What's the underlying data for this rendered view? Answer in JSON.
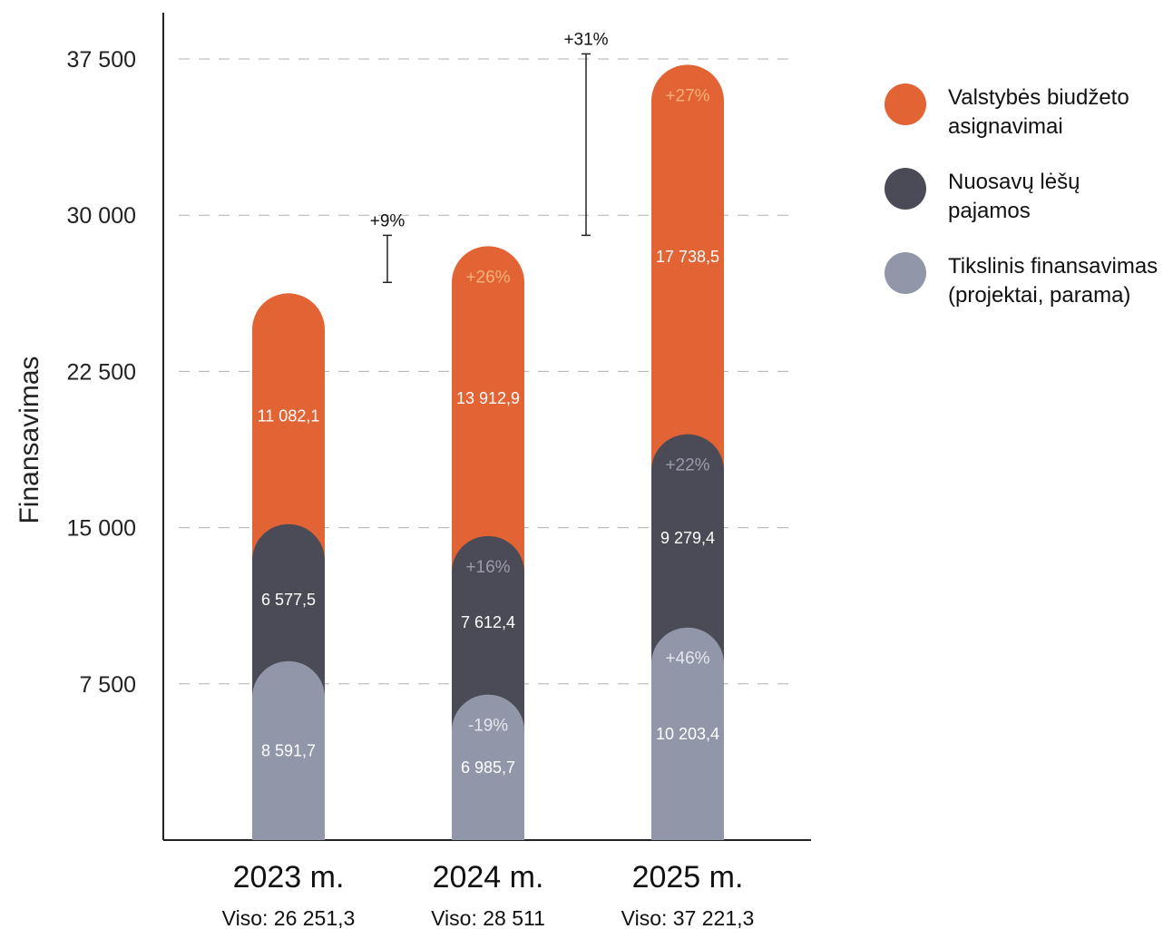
{
  "chart_data": {
    "type": "bar",
    "stacked": true,
    "ylabel": "Finansavimas",
    "ylim": [
      0,
      37500
    ],
    "yticks": [
      7500,
      15000,
      22500,
      30000,
      37500
    ],
    "ytick_labels": [
      "7 500",
      "15 000",
      "22 500",
      "30 000",
      "37  500"
    ],
    "grid": true,
    "legend_position": "right",
    "categories": [
      "2023 m.",
      "2024 m.",
      "2025 m."
    ],
    "totals": [
      "Viso: 26 251,3",
      "Viso: 28 511",
      "Viso: 37 221,3"
    ],
    "series": [
      {
        "name": "Tikslinis finansavimas (projektai, parama)",
        "legend_lines": [
          "Tikslinis finansavimas",
          "(projektai, parama)"
        ],
        "color": "#9196a8",
        "change_color": "#e6e7ee",
        "values": [
          8591.7,
          6985.7,
          10203.4
        ],
        "value_labels": [
          "8 591,7",
          "6 985,7",
          "10 203,4"
        ],
        "change_labels": [
          "",
          "-19%",
          "+46%"
        ]
      },
      {
        "name": "Nuosavų lėšų pajamos",
        "legend_lines": [
          "Nuosavų lėšų",
          "pajamos"
        ],
        "color": "#4a4b56",
        "change_color": "#9a9cac",
        "values": [
          6577.5,
          7612.4,
          9279.4
        ],
        "value_labels": [
          "6 577,5",
          "7 612,4",
          "9 279,4"
        ],
        "change_labels": [
          "",
          "+16%",
          "+22%"
        ]
      },
      {
        "name": "Valstybės biudžeto asignavimai",
        "legend_lines": [
          "Valstybės biudžeto",
          "asignavimai"
        ],
        "color": "#e26334",
        "change_color": "#f6b07a",
        "values": [
          11082.1,
          13912.9,
          17738.5
        ],
        "value_labels": [
          "11 082,1",
          "13 912,9",
          "17 738,5"
        ],
        "change_labels": [
          "",
          "+26%",
          "+27%"
        ]
      }
    ],
    "growth_annotations": [
      {
        "between": [
          "2023 m.",
          "2024 m."
        ],
        "label": "+9%"
      },
      {
        "between": [
          "2024 m.",
          "2025 m."
        ],
        "label": "+31%"
      }
    ]
  }
}
